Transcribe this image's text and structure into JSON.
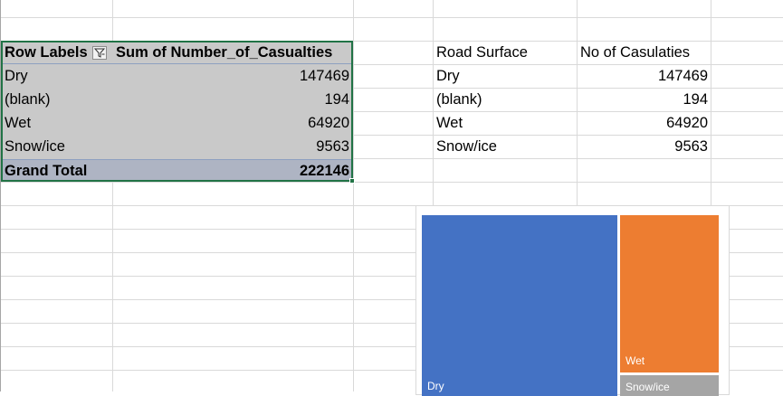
{
  "pivot": {
    "header_row_labels": "Row Labels",
    "header_value": "Sum of Number_of_Casualties",
    "rows": [
      {
        "label": "Dry",
        "value": "147469"
      },
      {
        "label": "(blank)",
        "value": "194"
      },
      {
        "label": "Wet",
        "value": "64920"
      },
      {
        "label": "Snow/ice",
        "value": "9563"
      }
    ],
    "total_label": "Grand Total",
    "total_value": "222146"
  },
  "table": {
    "header_surface": "Road Surface",
    "header_count": "No of Casulaties",
    "rows": [
      {
        "label": "Dry",
        "value": "147469"
      },
      {
        "label": "(blank)",
        "value": "194"
      },
      {
        "label": "Wet",
        "value": "64920"
      },
      {
        "label": "Snow/ice",
        "value": "9563"
      }
    ]
  },
  "icons": {
    "filter_button": "filter-funnel-icon"
  },
  "colors": {
    "dry": "#4472c4",
    "wet": "#ed7d31",
    "snow_ice": "#a5a5a5",
    "selection": "#217346"
  },
  "chart_data": {
    "type": "treemap",
    "categories": [
      "Dry",
      "(blank)",
      "Wet",
      "Snow/ice"
    ],
    "values": [
      147469,
      194,
      64920,
      9563
    ],
    "visible_labels": [
      "Dry",
      "Wet",
      "Snow/ice"
    ]
  }
}
